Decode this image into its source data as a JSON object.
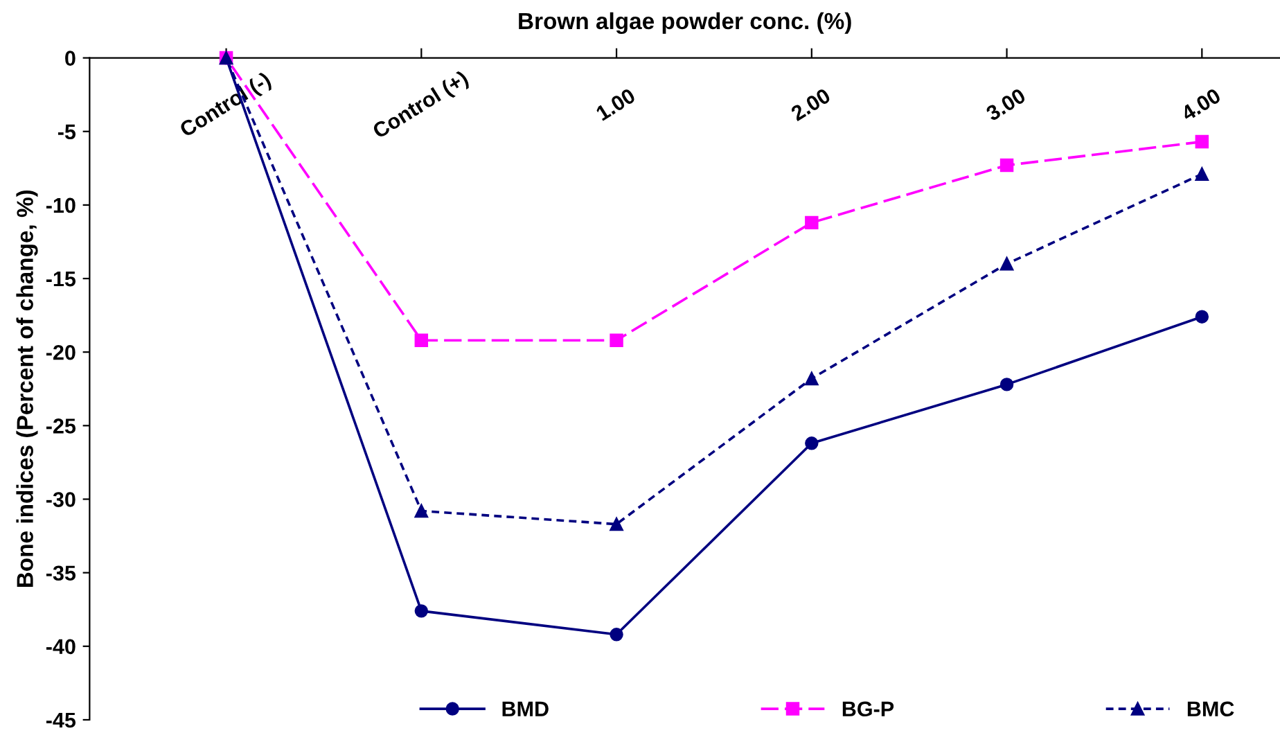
{
  "chart_data": {
    "type": "line",
    "xlabel": "Brown algae powder conc. (%)",
    "ylabel": "Bone indices (Percent of change, %)",
    "categories": [
      "Control (-)",
      "Control (+)",
      "1.00",
      "2.00",
      "3.00",
      "4.00"
    ],
    "series": [
      {
        "name": "BMD",
        "color": "#000080",
        "marker": "circle",
        "line_style": "solid",
        "values": [
          0,
          -37.6,
          -39.2,
          -26.2,
          -22.2,
          -17.6
        ]
      },
      {
        "name": "BG-P",
        "color": "#ff00ff",
        "marker": "square",
        "line_style": "dashed",
        "values": [
          0,
          -19.2,
          -19.2,
          -11.2,
          -7.3,
          -5.7
        ]
      },
      {
        "name": "BMC",
        "color": "#000080",
        "marker": "triangle",
        "line_style": "dotted",
        "values": [
          0,
          -30.8,
          -31.7,
          -21.8,
          -14.0,
          -7.9
        ]
      }
    ],
    "ylim": [
      -45,
      0
    ],
    "yticks": [
      0,
      -5,
      -10,
      -15,
      -20,
      -25,
      -30,
      -35,
      -40,
      -45
    ],
    "grid": false,
    "legend": "bottom"
  }
}
